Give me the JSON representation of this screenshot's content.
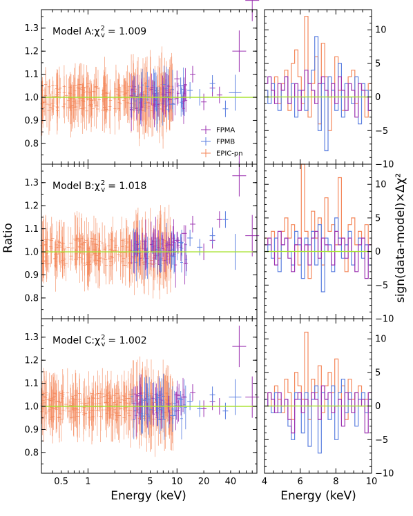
{
  "chart_data": {
    "type": "scatter",
    "ylabel_left": "Ratio",
    "ylabel_right": "sign(data-model)×Δχ²",
    "xlabel_left": "Energy (keV)",
    "xlabel_right": "Energy (keV)",
    "left_x_ticks": [
      "0.5",
      "1",
      "5",
      "10",
      "20",
      "40"
    ],
    "left_x_tick_values": [
      0.5,
      1,
      5,
      10,
      20,
      40
    ],
    "left_xlim": [
      0.3,
      79
    ],
    "left_xscale": "log",
    "left_y_ticks": [
      "0.8",
      "0.9",
      "1.0",
      "1.1",
      "1.2",
      "1.3"
    ],
    "left_ylim": [
      0.71,
      1.38
    ],
    "right_x_ticks": [
      "4",
      "6",
      "8",
      "10"
    ],
    "right_xlim": [
      4,
      10
    ],
    "right_y_ticks": [
      "−10",
      "−5",
      "0",
      "5",
      "10"
    ],
    "right_y_tick_values": [
      -10,
      -5,
      0,
      5,
      10
    ],
    "right_ylim": [
      -10,
      13
    ],
    "legend": {
      "placement": "lower-right of top panel",
      "entries": [
        {
          "name": "FPMA",
          "color": "#9b30b0"
        },
        {
          "name": "FPMB",
          "color": "#5b7fe0"
        },
        {
          "name": "EPIC-pn",
          "color": "#f4875a"
        }
      ]
    },
    "model_line_color": "#a6e22e",
    "panels": [
      {
        "label": "Model A:χ",
        "stat": "= 1.009",
        "fpma_points": [
          [
            8,
            1.02
          ],
          [
            10,
            1.08
          ],
          [
            12,
            1.05
          ],
          [
            15,
            1.1
          ],
          [
            20,
            0.98
          ],
          [
            25,
            1.04
          ],
          [
            30,
            1.01
          ],
          [
            50,
            1.2
          ],
          [
            70,
            1.42
          ]
        ],
        "fpmb_points": [
          [
            9,
            0.97
          ],
          [
            11,
            1.05
          ],
          [
            14,
            1.03
          ],
          [
            18,
            1.0
          ],
          [
            25,
            1.06
          ],
          [
            35,
            0.95
          ],
          [
            45,
            1.02
          ]
        ],
        "fpma_residual_steps": [
          2,
          3,
          1,
          -1,
          2,
          1,
          3,
          -1,
          0,
          2,
          -2,
          1,
          4,
          2,
          1,
          -1,
          2,
          3,
          1,
          0,
          2,
          -1,
          3,
          1,
          -2,
          2,
          1,
          -3,
          2,
          1,
          0,
          -2
        ],
        "fpmb_residual_steps": [
          1,
          -1,
          2,
          0,
          -2,
          1,
          3,
          -1,
          2,
          -3,
          1,
          0,
          -2,
          2,
          4,
          9,
          -5,
          2,
          -8,
          3,
          1,
          -2,
          5,
          -3,
          2,
          0,
          -1,
          3,
          -4,
          2,
          1,
          -2
        ],
        "epic_residual_steps": [
          1,
          0,
          2,
          3,
          -1,
          2,
          4,
          -2,
          5,
          7,
          3,
          -1,
          12,
          -3,
          2,
          6,
          -4,
          8,
          3,
          -5,
          2,
          6,
          1,
          -2,
          0,
          3,
          4,
          -1,
          2,
          1,
          -3,
          2
        ]
      },
      {
        "label": "Model B:χ",
        "stat": "= 1.018",
        "fpma_points": [
          [
            8,
            1.03
          ],
          [
            10,
            1.05
          ],
          [
            12,
            1.08
          ],
          [
            15,
            1.12
          ],
          [
            20,
            1.0
          ],
          [
            25,
            1.05
          ],
          [
            30,
            1.14
          ],
          [
            50,
            1.33
          ],
          [
            70,
            1.07
          ]
        ],
        "fpmb_points": [
          [
            9,
            0.98
          ],
          [
            11,
            1.04
          ],
          [
            14,
            1.06
          ],
          [
            18,
            1.02
          ],
          [
            25,
            1.07
          ],
          [
            35,
            1.14
          ],
          [
            45,
            1.0
          ]
        ],
        "fpma_residual_steps": [
          1,
          2,
          0,
          -2,
          3,
          1,
          2,
          -1,
          -3,
          1,
          2,
          0,
          1,
          -2,
          2,
          3,
          -1,
          2,
          1,
          0,
          -2,
          3,
          1,
          2,
          -1,
          2,
          0,
          -3,
          1,
          2,
          -4,
          1
        ],
        "fpmb_residual_steps": [
          0,
          1,
          -1,
          2,
          -3,
          1,
          2,
          0,
          -2,
          3,
          1,
          -4,
          2,
          1,
          3,
          -2,
          4,
          -6,
          2,
          1,
          -3,
          5,
          2,
          -1,
          1,
          3,
          -2,
          0,
          2,
          -1,
          1,
          -2
        ],
        "epic_residual_steps": [
          2,
          1,
          3,
          0,
          -1,
          3,
          5,
          2,
          4,
          1,
          -2,
          13,
          3,
          -4,
          6,
          2,
          5,
          -2,
          8,
          3,
          4,
          1,
          11,
          2,
          -3,
          4,
          5,
          1,
          3,
          2,
          4,
          1
        ]
      },
      {
        "label": "Model C:χ",
        "stat": "= 1.002",
        "fpma_points": [
          [
            8,
            1.01
          ],
          [
            10,
            1.05
          ],
          [
            12,
            1.04
          ],
          [
            15,
            1.06
          ],
          [
            20,
            0.99
          ],
          [
            25,
            1.02
          ],
          [
            30,
            1.0
          ],
          [
            50,
            1.26
          ],
          [
            70,
            1.04
          ]
        ],
        "fpmb_points": [
          [
            9,
            0.96
          ],
          [
            11,
            1.03
          ],
          [
            14,
            1.02
          ],
          [
            18,
            0.99
          ],
          [
            25,
            1.05
          ],
          [
            35,
            0.98
          ],
          [
            45,
            1.04
          ]
        ],
        "fpma_residual_steps": [
          0,
          2,
          1,
          -1,
          2,
          0,
          1,
          -2,
          -4,
          1,
          2,
          -1,
          1,
          0,
          2,
          1,
          -2,
          3,
          1,
          2,
          -1,
          0,
          1,
          -3,
          2,
          1,
          -1,
          2,
          0,
          1,
          -4,
          2
        ],
        "fpmb_residual_steps": [
          1,
          0,
          -1,
          2,
          -1,
          0,
          1,
          -3,
          -5,
          2,
          1,
          -4,
          2,
          -6,
          1,
          3,
          -7,
          2,
          1,
          -2,
          3,
          -5,
          2,
          4,
          -1,
          2,
          0,
          -3,
          1,
          2,
          -1,
          1
        ],
        "epic_residual_steps": [
          1,
          2,
          0,
          3,
          1,
          -1,
          4,
          2,
          -2,
          5,
          3,
          1,
          11,
          -2,
          4,
          2,
          6,
          -1,
          3,
          5,
          2,
          7,
          1,
          3,
          -2,
          4,
          1,
          2,
          3,
          0,
          1,
          2
        ]
      }
    ]
  }
}
